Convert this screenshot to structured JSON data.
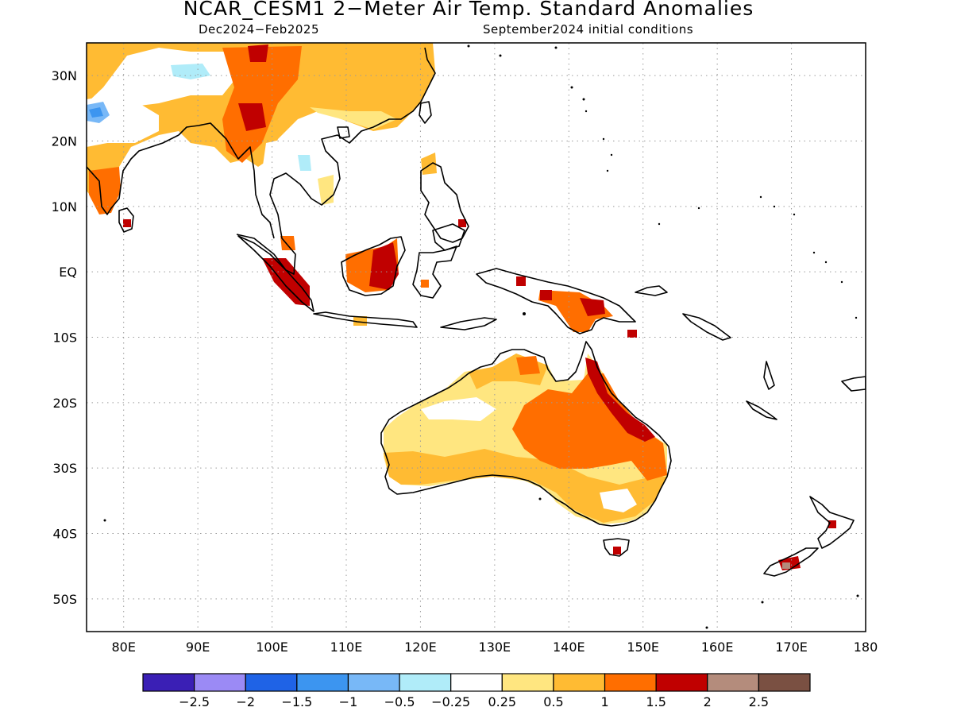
{
  "title": "NCAR_CESM1 2−Meter Air Temp. Standard Anomalies",
  "subtitle_left": "Dec2024−Feb2025",
  "subtitle_right": "September2024 initial conditions",
  "map": {
    "lon_range": [
      75,
      180
    ],
    "lat_range": [
      -55,
      35
    ],
    "lat_ticks": [
      {
        "value": 30,
        "label": "30N"
      },
      {
        "value": 20,
        "label": "20N"
      },
      {
        "value": 10,
        "label": "10N"
      },
      {
        "value": 0,
        "label": "EQ"
      },
      {
        "value": -10,
        "label": "10S"
      },
      {
        "value": -20,
        "label": "20S"
      },
      {
        "value": -30,
        "label": "30S"
      },
      {
        "value": -40,
        "label": "40S"
      },
      {
        "value": -50,
        "label": "50S"
      }
    ],
    "lon_ticks": [
      {
        "value": 80,
        "label": "80E"
      },
      {
        "value": 90,
        "label": "90E"
      },
      {
        "value": 100,
        "label": "100E"
      },
      {
        "value": 110,
        "label": "110E"
      },
      {
        "value": 120,
        "label": "120E"
      },
      {
        "value": 130,
        "label": "130E"
      },
      {
        "value": 140,
        "label": "140E"
      },
      {
        "value": 150,
        "label": "150E"
      },
      {
        "value": 160,
        "label": "160E"
      },
      {
        "value": 170,
        "label": "170E"
      },
      {
        "value": 180,
        "label": "180"
      }
    ],
    "grid": "dotted"
  },
  "colorbar": {
    "colors": [
      "#3a1fb5",
      "#9b8af5",
      "#1f63e6",
      "#3c95f0",
      "#78b8f7",
      "#b0ecf9",
      "#ffffff",
      "#ffe680",
      "#ffbb33",
      "#ff6e00",
      "#c00000",
      "#b48c7c",
      "#7a5042"
    ],
    "labels": [
      "−2.5",
      "−2",
      "−1.5",
      "−1",
      "−0.5",
      "−0.25",
      "0.25",
      "0.5",
      "1",
      "1.5",
      "2",
      "2.5"
    ]
  },
  "colors": {
    "light_yellow": "#ffe680",
    "orange": "#ffbb33",
    "dark_orange": "#ff6e00",
    "red": "#c00000",
    "light_blue": "#b0ecf9",
    "blue": "#3c95f0",
    "sky": "#78b8f7"
  }
}
